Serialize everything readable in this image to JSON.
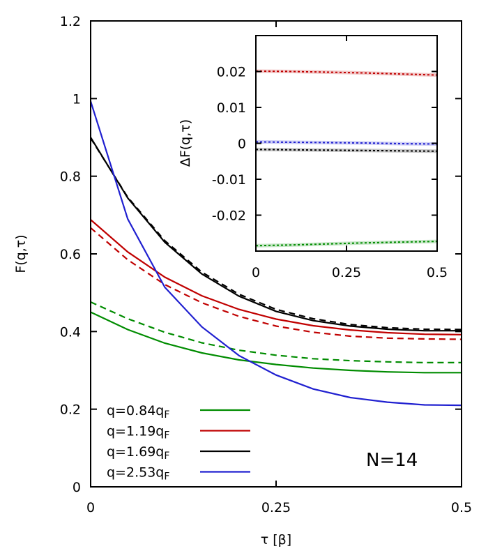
{
  "chart_data": [
    {
      "name": "main",
      "type": "line",
      "xlabel": "τ [β]",
      "ylabel": "F(q,τ)",
      "xlim": [
        0,
        0.5
      ],
      "ylim": [
        0,
        1.2
      ],
      "xticks": [
        "0",
        "0.25",
        "0.5"
      ],
      "yticks": [
        "0",
        "0.2",
        "0.4",
        "0.6",
        "0.8",
        "1",
        "1.2"
      ],
      "annotation": "N=14",
      "legend_position": "bottom-left",
      "x": [
        0,
        0.05,
        0.1,
        0.15,
        0.2,
        0.25,
        0.3,
        0.35,
        0.4,
        0.45,
        0.5
      ],
      "series": [
        {
          "name": "q=0.84q",
          "subscript": "F",
          "color": "#008c00",
          "style": "solid",
          "values": [
            0.45,
            0.405,
            0.37,
            0.345,
            0.327,
            0.315,
            0.306,
            0.3,
            0.296,
            0.294,
            0.294
          ]
        },
        {
          "name": "q=0.84q",
          "subscript": "F",
          "color": "#008c00",
          "style": "dashed",
          "legend": false,
          "values": [
            0.476,
            0.433,
            0.398,
            0.371,
            0.352,
            0.339,
            0.33,
            0.325,
            0.322,
            0.32,
            0.32
          ]
        },
        {
          "name": "q=1.19q",
          "subscript": "F",
          "color": "#c00000",
          "style": "solid",
          "values": [
            0.688,
            0.605,
            0.54,
            0.492,
            0.457,
            0.432,
            0.415,
            0.404,
            0.397,
            0.393,
            0.392
          ]
        },
        {
          "name": "q=1.19q",
          "subscript": "F",
          "color": "#c00000",
          "style": "dashed",
          "legend": false,
          "values": [
            0.667,
            0.585,
            0.521,
            0.474,
            0.439,
            0.414,
            0.398,
            0.388,
            0.383,
            0.381,
            0.38
          ]
        },
        {
          "name": "q=1.69q",
          "subscript": "F",
          "color": "#000000",
          "style": "solid",
          "values": [
            0.9,
            0.744,
            0.63,
            0.548,
            0.491,
            0.452,
            0.428,
            0.414,
            0.406,
            0.402,
            0.402
          ]
        },
        {
          "name": "q=1.69q",
          "subscript": "F",
          "color": "#000000",
          "style": "dashed",
          "legend": false,
          "values": [
            0.898,
            0.746,
            0.634,
            0.553,
            0.496,
            0.457,
            0.433,
            0.418,
            0.41,
            0.406,
            0.405
          ]
        },
        {
          "name": "q=2.53q",
          "subscript": "F",
          "color": "#2020d0",
          "style": "solid",
          "values": [
            0.993,
            0.69,
            0.514,
            0.412,
            0.338,
            0.288,
            0.252,
            0.23,
            0.218,
            0.211,
            0.21
          ]
        }
      ]
    },
    {
      "name": "inset",
      "type": "line",
      "ylabel": "ΔF(q,τ)",
      "xlim": [
        0,
        0.5
      ],
      "ylim": [
        -0.03,
        0.03
      ],
      "xticks": [
        "0",
        "0.25",
        "0.5"
      ],
      "yticks": [
        "-0.02",
        "-0.01",
        "0",
        "0.01",
        "0.02"
      ],
      "x": [
        0,
        0.1,
        0.2,
        0.3,
        0.4,
        0.5
      ],
      "series": [
        {
          "name": "q=0.84q",
          "color": "#008c00",
          "values": [
            -0.0285,
            -0.0283,
            -0.028,
            -0.0277,
            -0.0275,
            -0.0273
          ]
        },
        {
          "name": "q=1.19q",
          "color": "#c00000",
          "values": [
            0.0201,
            0.02,
            0.0198,
            0.0196,
            0.0193,
            0.019
          ]
        },
        {
          "name": "q=1.69q",
          "color": "#000000",
          "values": [
            -0.0017,
            -0.0018,
            -0.0019,
            -0.002,
            -0.0021,
            -0.0022
          ]
        },
        {
          "name": "q=2.53q",
          "color": "#2020d0",
          "values": [
            0.0004,
            0.0003,
            0.0002,
            0.0001,
            -0.0001,
            -0.0002
          ]
        }
      ]
    }
  ]
}
